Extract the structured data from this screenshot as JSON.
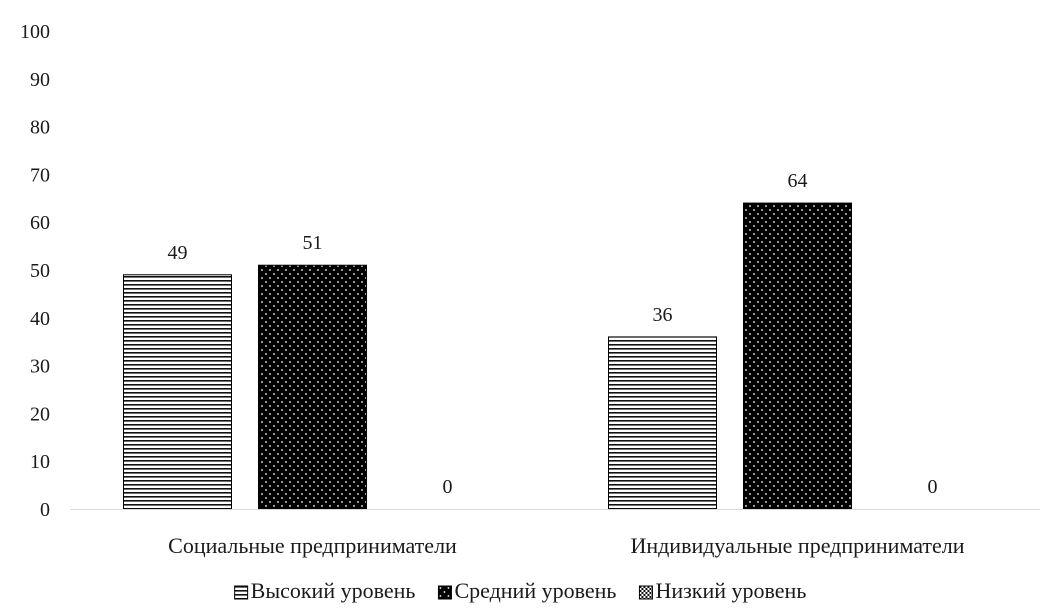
{
  "chart_data": {
    "type": "bar",
    "title": "",
    "xlabel": "",
    "ylabel": "",
    "categories": [
      "Социальные предприниматели",
      "Индивидуальные предприниматели"
    ],
    "series": [
      {
        "name": "Высокий уровень",
        "values": [
          49,
          36
        ],
        "pattern": "horizontal-lines"
      },
      {
        "name": "Средний уровень",
        "values": [
          51,
          64
        ],
        "pattern": "black-dots"
      },
      {
        "name": "Низкий уровень",
        "values": [
          0,
          0
        ],
        "pattern": "checker"
      }
    ],
    "ylim": [
      0,
      100
    ],
    "yticks": [
      0,
      10,
      20,
      30,
      40,
      50,
      60,
      70,
      80,
      90,
      100
    ],
    "grid": false,
    "legend_position": "bottom",
    "colors": {
      "ink": "#000000",
      "text": "#1a1a1a",
      "background": "#ffffff"
    }
  }
}
